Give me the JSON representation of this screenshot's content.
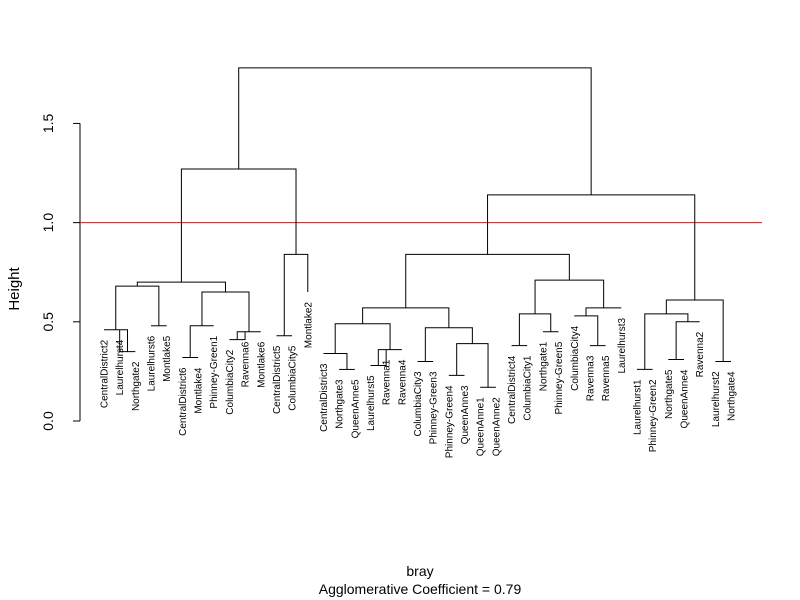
{
  "chart_data": {
    "type": "dendrogram",
    "ylabel": "Height",
    "xlabel": "bray",
    "subtitle": "Agglomerative Coefficient =  0.79",
    "ylim": [
      0,
      1.85
    ],
    "yticks": [
      "0.0",
      "0.5",
      "1.0",
      "1.5"
    ],
    "cut_height": 1.0,
    "cut_color": "#b22222",
    "line_color": "#000000",
    "leaves": [
      "CentralDistrict2",
      "Laurelhurst4",
      "Northgate2",
      "Laurelhurst6",
      "Montlake5",
      "CentralDistrict6",
      "Montlake4",
      "Phinney-Green1",
      "ColumbiaCity2",
      "Ravenna6",
      "Montlake6",
      "CentralDistrict5",
      "ColumbiaCity5",
      "Montlake2",
      "CentralDistrict3",
      "Northgate3",
      "QueenAnne5",
      "Laurelhurst5",
      "Ravenna1",
      "Ravenna4",
      "ColumbiaCity3",
      "Phinney-Green3",
      "Phinney-Green4",
      "QueenAnne3",
      "QueenAnne1",
      "QueenAnne2",
      "CentralDistrict4",
      "ColumbiaCity1",
      "Northgate1",
      "Phinney-Green5",
      "ColumbiaCity4",
      "Ravenna3",
      "Ravenna5",
      "Laurelhurst3",
      "Laurelhurst1",
      "Phinney-Green2",
      "Northgate5",
      "QueenAnne4",
      "Ravenna2",
      "Laurelhurst2",
      "Northgate4"
    ],
    "leaf_label_heights": [
      0.46,
      0.46,
      0.35,
      0.48,
      0.48,
      0.32,
      0.32,
      0.48,
      0.41,
      0.45,
      0.45,
      0.43,
      0.43,
      0.65,
      0.34,
      0.26,
      0.26,
      0.28,
      0.36,
      0.36,
      0.3,
      0.3,
      0.23,
      0.23,
      0.17,
      0.17,
      0.38,
      0.38,
      0.45,
      0.45,
      0.53,
      0.38,
      0.38,
      0.57,
      0.26,
      0.26,
      0.31,
      0.31,
      0.5,
      0.3,
      0.3
    ],
    "merges": [
      {
        "a": 2,
        "b": 3,
        "h": 0.35
      },
      {
        "a": 1,
        "b": -1,
        "h": 0.46
      },
      {
        "a": 4,
        "b": 5,
        "h": 0.48
      },
      {
        "a": -2,
        "b": -3,
        "h": 0.68
      },
      {
        "a": 6,
        "b": 7,
        "h": 0.32
      },
      {
        "a": -5,
        "b": 8,
        "h": 0.48
      },
      {
        "a": 9,
        "b": 10,
        "h": 0.41
      },
      {
        "a": -7,
        "b": 11,
        "h": 0.45
      },
      {
        "a": -6,
        "b": -8,
        "h": 0.65
      },
      {
        "a": -4,
        "b": -9,
        "h": 0.7
      },
      {
        "a": 12,
        "b": 13,
        "h": 0.43
      },
      {
        "a": -11,
        "b": 14,
        "h": 0.84
      },
      {
        "a": -10,
        "b": -12,
        "h": 1.27
      },
      {
        "a": 16,
        "b": 17,
        "h": 0.26
      },
      {
        "a": 15,
        "b": -14,
        "h": 0.34
      },
      {
        "a": 18,
        "b": 19,
        "h": 0.28
      },
      {
        "a": -16,
        "b": 20,
        "h": 0.36
      },
      {
        "a": -15,
        "b": -17,
        "h": 0.49
      },
      {
        "a": 21,
        "b": 22,
        "h": 0.3
      },
      {
        "a": 23,
        "b": 24,
        "h": 0.23
      },
      {
        "a": 25,
        "b": 26,
        "h": 0.17
      },
      {
        "a": -20,
        "b": -21,
        "h": 0.39
      },
      {
        "a": -19,
        "b": -22,
        "h": 0.47
      },
      {
        "a": -18,
        "b": -23,
        "h": 0.57
      },
      {
        "a": 27,
        "b": 28,
        "h": 0.38
      },
      {
        "a": 29,
        "b": 30,
        "h": 0.45
      },
      {
        "a": -25,
        "b": -26,
        "h": 0.54
      },
      {
        "a": 32,
        "b": 33,
        "h": 0.38
      },
      {
        "a": 31,
        "b": -28,
        "h": 0.53
      },
      {
        "a": 34,
        "b": -29,
        "h": 0.57
      },
      {
        "a": -27,
        "b": -30,
        "h": 0.71
      },
      {
        "a": -24,
        "b": -31,
        "h": 0.84
      },
      {
        "a": 35,
        "b": 36,
        "h": 0.26
      },
      {
        "a": 37,
        "b": 38,
        "h": 0.31
      },
      {
        "a": -34,
        "b": 39,
        "h": 0.5
      },
      {
        "a": -33,
        "b": -35,
        "h": 0.54
      },
      {
        "a": 40,
        "b": 41,
        "h": 0.3
      },
      {
        "a": -36,
        "b": -37,
        "h": 0.61
      },
      {
        "a": -32,
        "b": -38,
        "h": 1.14
      },
      {
        "a": -13,
        "b": -39,
        "h": 1.78
      }
    ]
  }
}
